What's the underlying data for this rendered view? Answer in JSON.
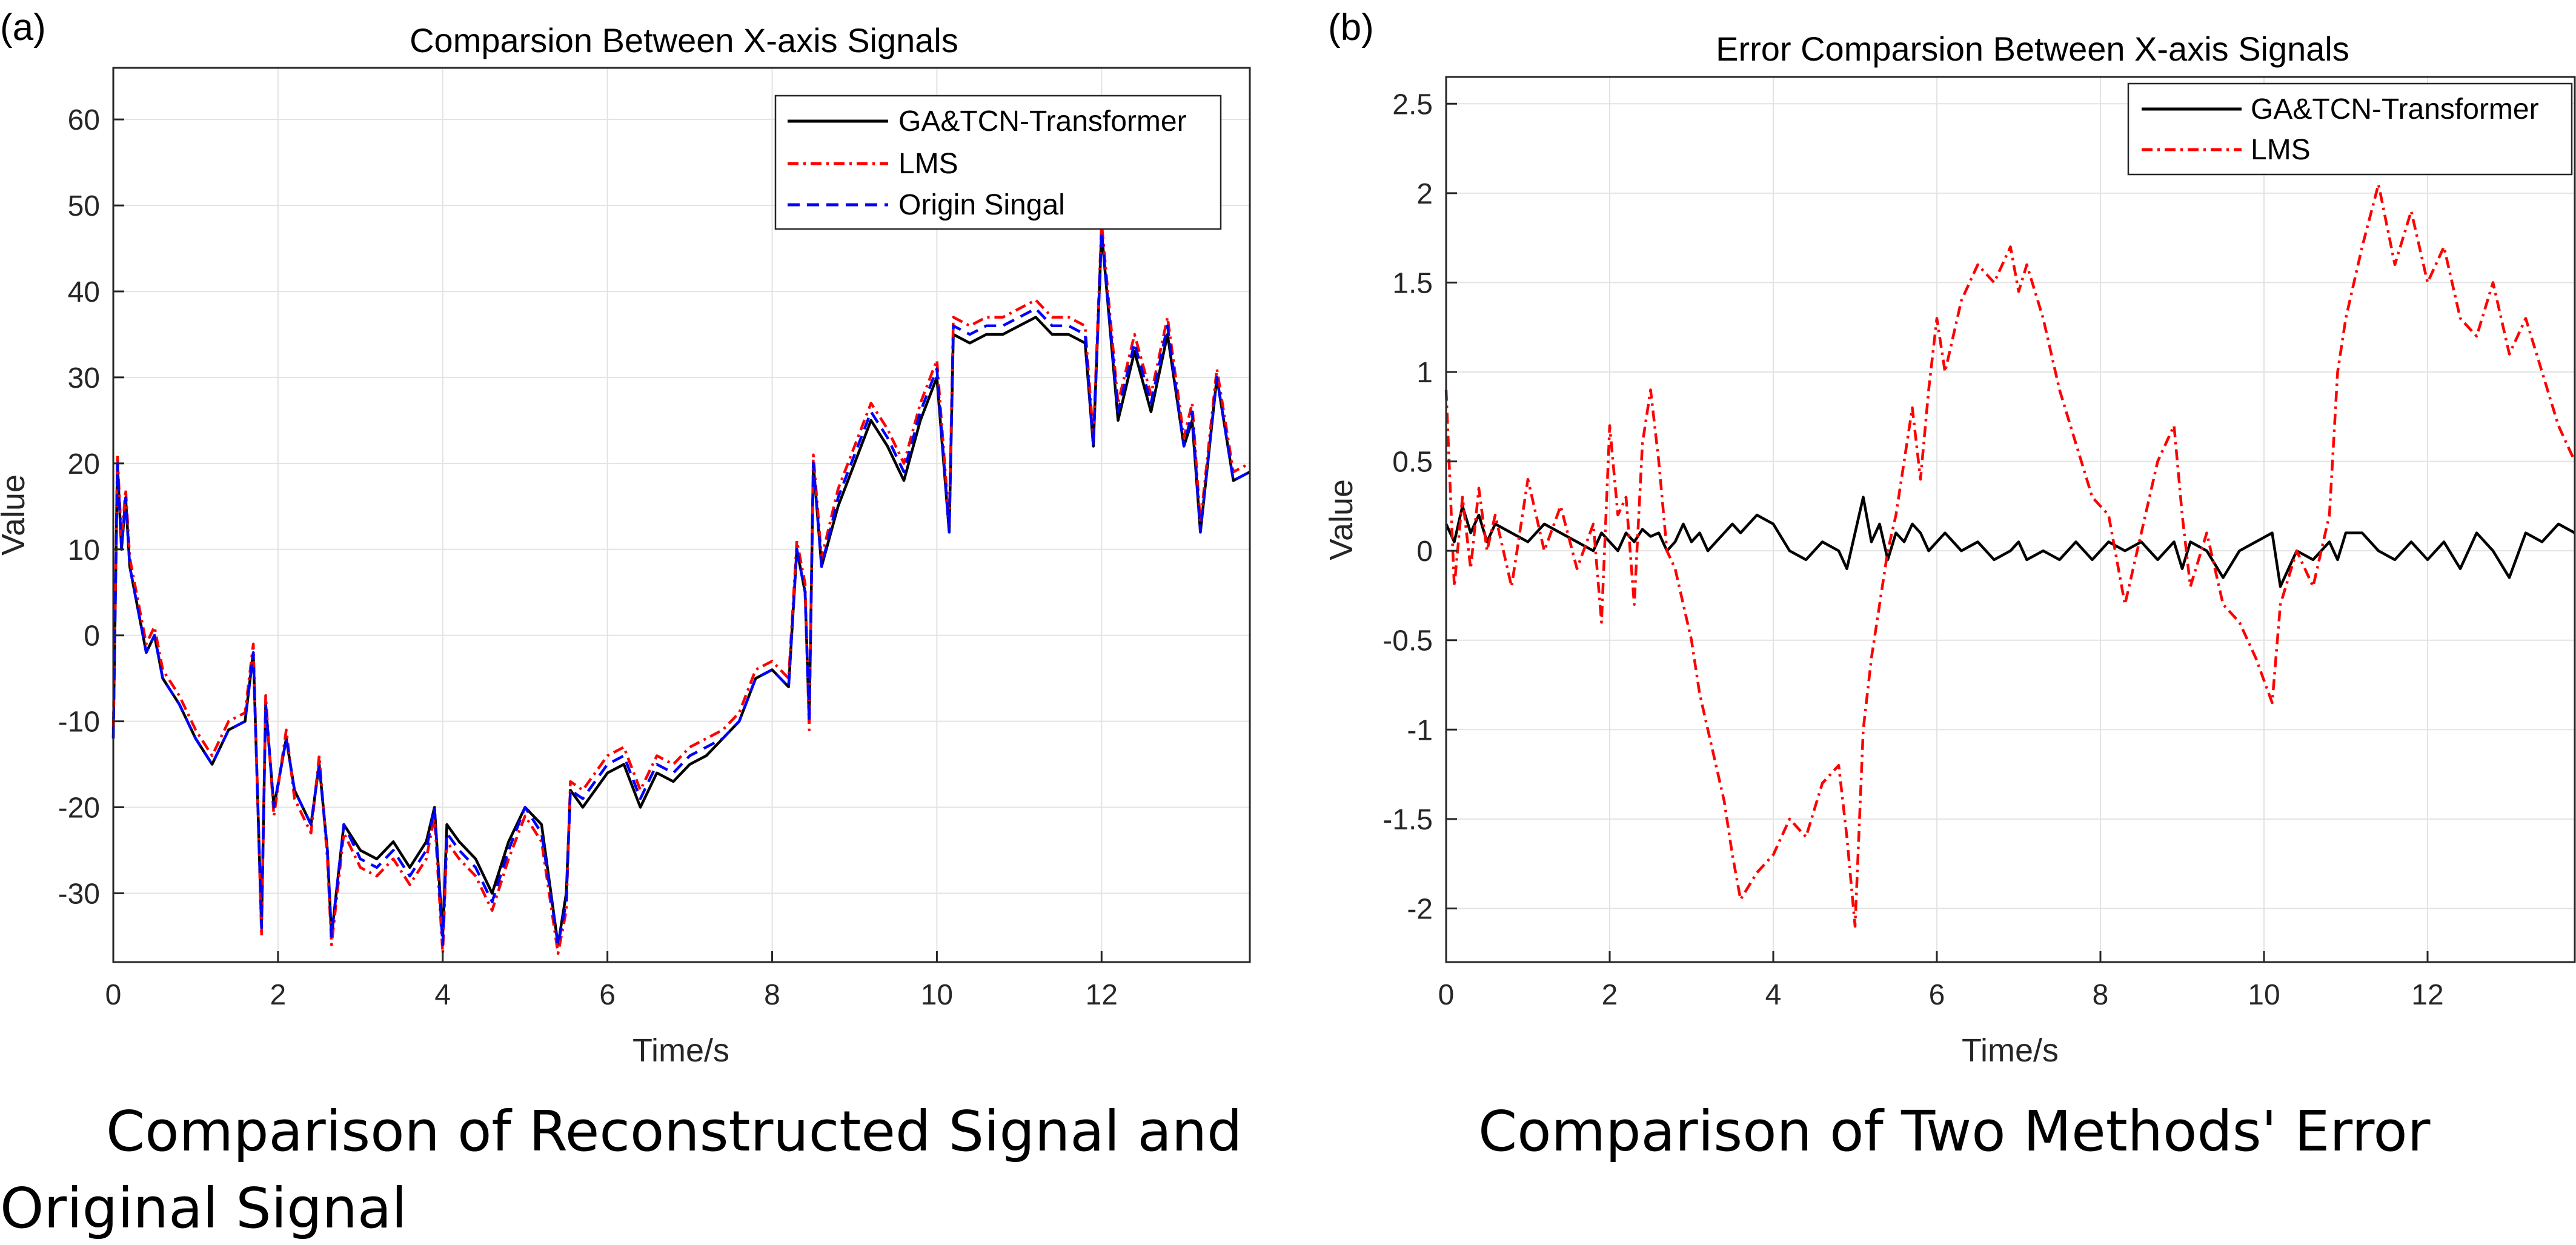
{
  "chart_data": [
    {
      "type": "line",
      "panel_label": "(a)",
      "title": "Comparsion Between X-axis Signals",
      "xlabel": "Time/s",
      "ylabel": "Value",
      "xlim": [
        0,
        13.8
      ],
      "ylim": [
        -38,
        66
      ],
      "xticks": [
        0,
        2,
        4,
        6,
        8,
        10,
        12
      ],
      "yticks": [
        -30,
        -20,
        -10,
        0,
        10,
        20,
        30,
        40,
        50,
        60
      ],
      "grid": true,
      "legend_position": "top-right",
      "x": [
        0,
        0.05,
        0.1,
        0.15,
        0.2,
        0.3,
        0.4,
        0.5,
        0.6,
        0.8,
        1.0,
        1.2,
        1.4,
        1.6,
        1.7,
        1.8,
        1.85,
        1.95,
        2.1,
        2.2,
        2.4,
        2.5,
        2.6,
        2.65,
        2.8,
        3.0,
        3.2,
        3.4,
        3.6,
        3.8,
        3.9,
        4.0,
        4.05,
        4.2,
        4.4,
        4.6,
        4.8,
        5.0,
        5.2,
        5.4,
        5.5,
        5.55,
        5.7,
        6.0,
        6.2,
        6.4,
        6.6,
        6.8,
        7.0,
        7.2,
        7.4,
        7.6,
        7.8,
        8.0,
        8.2,
        8.3,
        8.4,
        8.45,
        8.5,
        8.6,
        8.8,
        9.0,
        9.2,
        9.4,
        9.6,
        9.8,
        10.0,
        10.15,
        10.2,
        10.4,
        10.6,
        10.8,
        11.0,
        11.2,
        11.4,
        11.6,
        11.8,
        11.9,
        12.0,
        12.2,
        12.4,
        12.6,
        12.8,
        13.0,
        13.1,
        13.2,
        13.4,
        13.6,
        13.8
      ],
      "series": [
        {
          "name": "GA&TCN-Transformer",
          "color": "#000000",
          "dash": "solid",
          "values": [
            -12,
            20,
            10,
            16,
            8,
            3,
            -2,
            0,
            -5,
            -8,
            -12,
            -15,
            -11,
            -10,
            -2,
            -34,
            -8,
            -20,
            -12,
            -18,
            -22,
            -15,
            -25,
            -35,
            -22,
            -25,
            -26,
            -24,
            -27,
            -24,
            -20,
            -35,
            -22,
            -24,
            -26,
            -30,
            -24,
            -20,
            -22,
            -36,
            -30,
            -18,
            -20,
            -16,
            -15,
            -20,
            -16,
            -17,
            -15,
            -14,
            -12,
            -10,
            -5,
            -4,
            -6,
            10,
            5,
            -10,
            20,
            8,
            15,
            20,
            25,
            22,
            18,
            25,
            30,
            12,
            35,
            34,
            35,
            35,
            36,
            37,
            35,
            35,
            34,
            22,
            47,
            25,
            33,
            26,
            35,
            22,
            25,
            12,
            30,
            18,
            19
          ]
        },
        {
          "name": "LMS",
          "color": "#ff0000",
          "dash": "dashdot",
          "values": [
            -11,
            21,
            11,
            17,
            9,
            4,
            -1,
            1,
            -4,
            -7,
            -11,
            -14,
            -10,
            -9,
            -1,
            -35,
            -7,
            -21,
            -11,
            -19,
            -23,
            -14,
            -26,
            -36,
            -23,
            -27,
            -28,
            -26,
            -29,
            -26,
            -21,
            -37,
            -24,
            -26,
            -28,
            -32,
            -26,
            -21,
            -24,
            -37,
            -32,
            -17,
            -18,
            -14,
            -13,
            -18,
            -14,
            -15,
            -13,
            -12,
            -11,
            -9,
            -4,
            -3,
            -5,
            11,
            6,
            -11,
            21,
            9,
            17,
            22,
            27,
            24,
            20,
            27,
            32,
            13,
            37,
            36,
            37,
            37,
            38,
            39,
            37,
            37,
            36,
            23,
            48,
            27,
            35,
            28,
            37,
            23,
            27,
            13,
            31,
            19,
            20
          ]
        },
        {
          "name": "Origin Singal",
          "color": "#0000ff",
          "dash": "dashed",
          "values": [
            -12,
            20,
            10,
            16,
            8,
            3,
            -2,
            0,
            -5,
            -8,
            -12,
            -15,
            -11,
            -10,
            -2,
            -34,
            -8,
            -20,
            -12,
            -18,
            -22,
            -15,
            -25,
            -35,
            -22,
            -26,
            -27,
            -25,
            -28,
            -25,
            -20,
            -36,
            -23,
            -25,
            -27,
            -31,
            -25,
            -20,
            -23,
            -36,
            -31,
            -18,
            -19,
            -15,
            -14,
            -19,
            -15,
            -16,
            -14,
            -13,
            -12,
            -10,
            -5,
            -4,
            -6,
            10,
            5,
            -10,
            20,
            8,
            16,
            21,
            26,
            23,
            19,
            26,
            31,
            12,
            36,
            35,
            36,
            36,
            37,
            38,
            36,
            36,
            35,
            22,
            47,
            26,
            34,
            27,
            36,
            22,
            26,
            12,
            30,
            18,
            19
          ]
        }
      ]
    },
    {
      "type": "line",
      "panel_label": "(b)",
      "title": "Error Comparsion Between X-axis Signals",
      "xlabel": "Time/s",
      "ylabel": "Value",
      "xlim": [
        0,
        13.8
      ],
      "ylim": [
        -2.3,
        2.65
      ],
      "xticks": [
        0,
        2,
        4,
        6,
        8,
        10,
        12
      ],
      "yticks": [
        -2,
        -1.5,
        -1,
        -0.5,
        0,
        0.5,
        1,
        1.5,
        2,
        2.5
      ],
      "grid": true,
      "legend_position": "top-right",
      "x": [
        0,
        0.1,
        0.2,
        0.3,
        0.4,
        0.5,
        0.6,
        0.8,
        1.0,
        1.2,
        1.4,
        1.6,
        1.8,
        1.9,
        2.0,
        2.1,
        2.2,
        2.3,
        2.4,
        2.5,
        2.6,
        2.7,
        2.8,
        2.9,
        3.0,
        3.1,
        3.2,
        3.3,
        3.4,
        3.5,
        3.6,
        3.8,
        4.0,
        4.2,
        4.4,
        4.6,
        4.8,
        4.9,
        5.0,
        5.1,
        5.2,
        5.3,
        5.4,
        5.5,
        5.6,
        5.7,
        5.8,
        5.9,
        6.0,
        6.1,
        6.3,
        6.5,
        6.7,
        6.9,
        7.0,
        7.1,
        7.3,
        7.5,
        7.7,
        7.9,
        8.1,
        8.3,
        8.5,
        8.7,
        8.9,
        9.0,
        9.1,
        9.3,
        9.5,
        9.7,
        9.9,
        10.1,
        10.2,
        10.4,
        10.6,
        10.8,
        10.9,
        11.0,
        11.2,
        11.4,
        11.6,
        11.8,
        12.0,
        12.2,
        12.4,
        12.6,
        12.8,
        13.0,
        13.2,
        13.4,
        13.6,
        13.8
      ],
      "series": [
        {
          "name": "GA&TCN-Transformer",
          "color": "#000000",
          "dash": "solid",
          "values": [
            0.15,
            0.05,
            0.25,
            0.1,
            0.2,
            0.05,
            0.15,
            0.1,
            0.05,
            0.15,
            0.1,
            0.05,
            0.0,
            0.1,
            0.05,
            0.0,
            0.1,
            0.05,
            0.12,
            0.08,
            0.1,
            0.0,
            0.05,
            0.15,
            0.05,
            0.1,
            0.0,
            0.05,
            0.1,
            0.15,
            0.1,
            0.2,
            0.15,
            0.0,
            -0.05,
            0.05,
            0.0,
            -0.1,
            0.1,
            0.3,
            0.05,
            0.15,
            -0.05,
            0.1,
            0.05,
            0.15,
            0.1,
            0.0,
            0.05,
            0.1,
            0.0,
            0.05,
            -0.05,
            0.0,
            0.05,
            -0.05,
            0.0,
            -0.05,
            0.05,
            -0.05,
            0.05,
            0.0,
            0.05,
            -0.05,
            0.05,
            -0.1,
            0.05,
            0.0,
            -0.15,
            0.0,
            0.05,
            0.1,
            -0.2,
            0.0,
            -0.05,
            0.05,
            -0.05,
            0.1,
            0.1,
            0.0,
            -0.05,
            0.05,
            -0.05,
            0.05,
            -0.1,
            0.1,
            0.0,
            -0.15,
            0.1,
            0.05,
            0.15,
            0.1
          ]
        },
        {
          "name": "LMS",
          "color": "#ff0000",
          "dash": "dashdot",
          "values": [
            0.9,
            -0.2,
            0.3,
            -0.1,
            0.35,
            0.0,
            0.2,
            -0.2,
            0.4,
            0.0,
            0.25,
            -0.1,
            0.15,
            -0.4,
            0.7,
            0.2,
            0.3,
            -0.3,
            0.6,
            0.9,
            0.5,
            0.0,
            -0.1,
            -0.3,
            -0.5,
            -0.8,
            -1.0,
            -1.2,
            -1.4,
            -1.7,
            -1.95,
            -1.8,
            -1.7,
            -1.5,
            -1.6,
            -1.3,
            -1.2,
            -1.6,
            -2.1,
            -1.0,
            -0.6,
            -0.3,
            0.0,
            0.2,
            0.5,
            0.8,
            0.4,
            0.9,
            1.3,
            1.0,
            1.4,
            1.6,
            1.5,
            1.7,
            1.45,
            1.6,
            1.3,
            0.9,
            0.6,
            0.3,
            0.2,
            -0.3,
            0.1,
            0.5,
            0.7,
            0.2,
            -0.2,
            0.1,
            -0.3,
            -0.4,
            -0.6,
            -0.85,
            -0.3,
            0.0,
            -0.2,
            0.2,
            1.0,
            1.3,
            1.7,
            2.05,
            1.6,
            1.9,
            1.5,
            1.7,
            1.3,
            1.2,
            1.5,
            1.1,
            1.3,
            1.0,
            0.7,
            0.5
          ]
        }
      ]
    }
  ],
  "captions": {
    "left_line1": "Comparison of Reconstructed Signal and",
    "left_line2": "Original Signal",
    "right": "Comparison of Two Methods' Error"
  }
}
